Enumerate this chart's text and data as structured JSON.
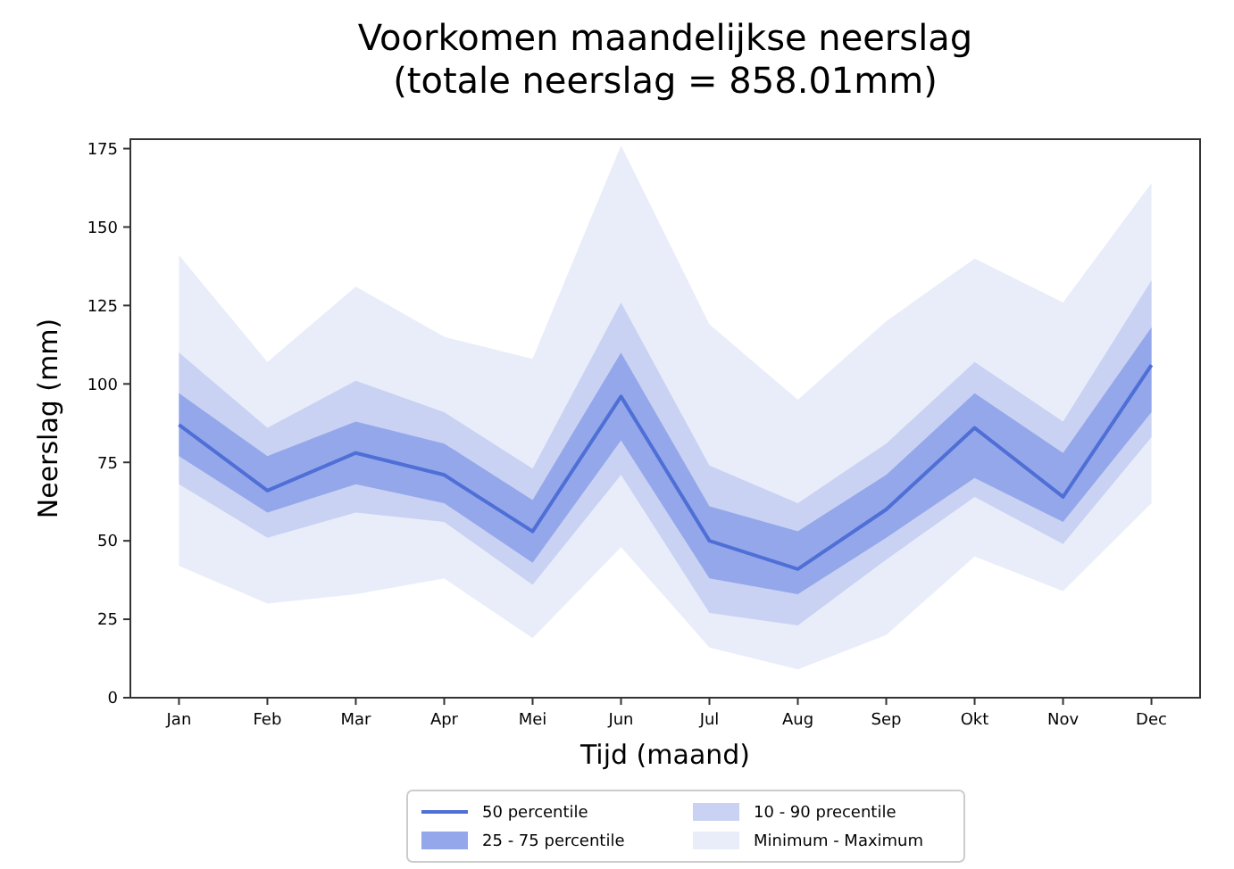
{
  "chart_data": {
    "type": "line",
    "title": "Voorkomen maandelijkse neerslag",
    "subtitle": "(totale neerslag = 858.01mm)",
    "xlabel": "Tijd (maand)",
    "ylabel": "Neerslag (mm)",
    "categories": [
      "Jan",
      "Feb",
      "Mar",
      "Apr",
      "Mei",
      "Jun",
      "Jul",
      "Aug",
      "Sep",
      "Okt",
      "Nov",
      "Dec"
    ],
    "ylim": [
      0,
      178
    ],
    "yticks": [
      0,
      25,
      50,
      75,
      100,
      125,
      150,
      175
    ],
    "legend": "bottom",
    "series": [
      {
        "name": "Minimum - Maximum",
        "color": "#e9edfa",
        "values": [
          null,
          null,
          null,
          null,
          null,
          null,
          null,
          null,
          null,
          null,
          null,
          null
        ],
        "lower": [
          42,
          30,
          33,
          38,
          19,
          48,
          16,
          9,
          20,
          45,
          34,
          62
        ],
        "upper": [
          141,
          107,
          131,
          115,
          108,
          176,
          119,
          95,
          120,
          140,
          126,
          164
        ]
      },
      {
        "name": "10 - 90 precentile",
        "color": "#c9d2f3",
        "values": [
          null,
          null,
          null,
          null,
          null,
          null,
          null,
          null,
          null,
          null,
          null,
          null
        ],
        "lower": [
          68,
          51,
          59,
          56,
          36,
          71,
          27,
          23,
          44,
          64,
          49,
          83
        ],
        "upper": [
          110,
          86,
          101,
          91,
          73,
          126,
          74,
          62,
          81,
          107,
          88,
          133
        ]
      },
      {
        "name": "25 - 75 percentile",
        "color": "#93a7ea",
        "values": [
          null,
          null,
          null,
          null,
          null,
          null,
          null,
          null,
          null,
          null,
          null,
          null
        ],
        "lower": [
          77,
          59,
          68,
          62,
          43,
          82,
          38,
          33,
          51,
          70,
          56,
          91
        ],
        "upper": [
          97,
          77,
          88,
          81,
          63,
          110,
          61,
          53,
          71,
          97,
          78,
          118
        ]
      },
      {
        "name": "50 percentile",
        "color": "#4f6fd6",
        "values": [
          87,
          66,
          78,
          71,
          53,
          96,
          50,
          41,
          60,
          86,
          64,
          106
        ]
      }
    ]
  }
}
